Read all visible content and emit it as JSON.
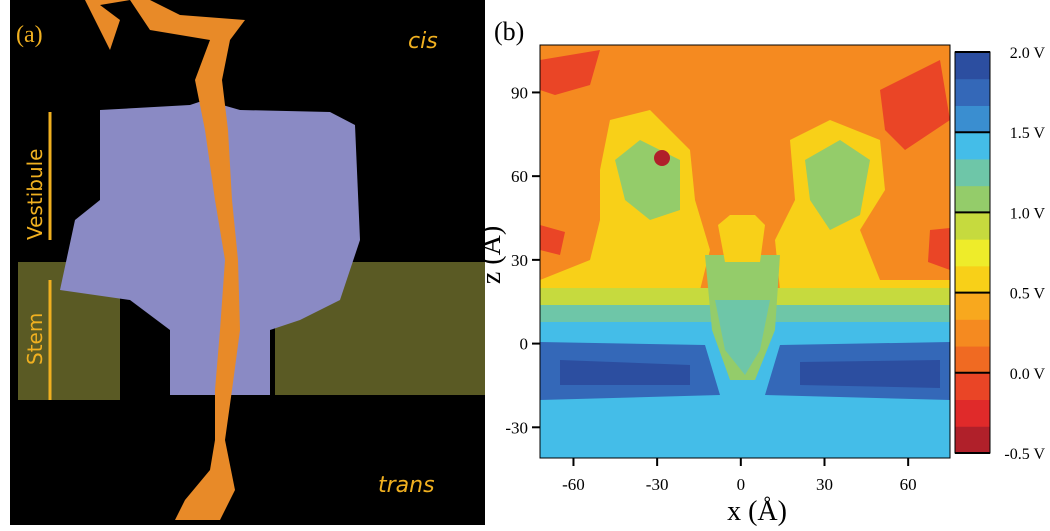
{
  "panel_a": {
    "label": "(a)",
    "cis": "cis",
    "trans": "trans",
    "vestibule": "Vestibule",
    "stem": "Stem"
  },
  "panel_b": {
    "label": "(b)",
    "xlabel": "x (Å)",
    "ylabel": "z (Å)",
    "xlim": [
      -72,
      75
    ],
    "xticks": [
      -60,
      -30,
      0,
      30,
      60
    ],
    "ylim": [
      -41,
      107
    ],
    "yticks": [
      -30,
      0,
      30,
      60,
      90
    ],
    "colorbar": {
      "lim": [
        -0.5,
        2.0
      ],
      "ticks": [
        {
          "value": 2.0,
          "label": "2.0 V"
        },
        {
          "value": 1.5,
          "label": "1.5 V"
        },
        {
          "value": 1.0,
          "label": "1.0 V"
        },
        {
          "value": 0.5,
          "label": "0.5 V"
        },
        {
          "value": 0.0,
          "label": "0.0 V"
        },
        {
          "value": -0.5,
          "label": "-0.5 V"
        }
      ],
      "colors": [
        "#b0202a",
        "#e02a2a",
        "#ea4526",
        "#f06a22",
        "#f58a20",
        "#f8a81e",
        "#f8d018",
        "#eeec2a",
        "#c6da3e",
        "#94cc6a",
        "#6ec6a8",
        "#44bde8",
        "#3a8ed0",
        "#3468b8",
        "#2c4ea0"
      ]
    }
  }
}
